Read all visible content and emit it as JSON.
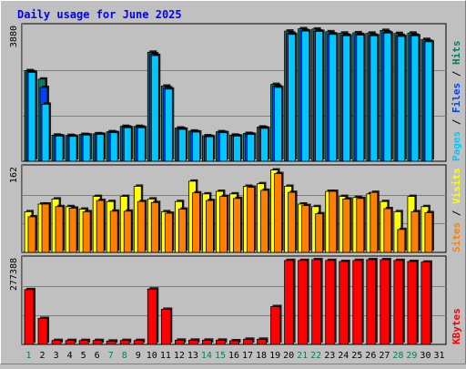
{
  "chart_data": {
    "type": "bar",
    "title": "Daily usage for June 2025",
    "categories": [
      "1",
      "2",
      "3",
      "4",
      "5",
      "6",
      "7",
      "8",
      "9",
      "10",
      "11",
      "12",
      "13",
      "14",
      "15",
      "16",
      "17",
      "18",
      "19",
      "20",
      "21",
      "22",
      "23",
      "24",
      "25",
      "26",
      "27",
      "28",
      "29",
      "30",
      "31"
    ],
    "weekend_days": [
      1,
      7,
      8,
      14,
      15,
      21,
      22,
      28,
      29
    ],
    "panels": [
      {
        "name": "hits-files-pages",
        "ylabel_max": "3880",
        "ymax": 4100,
        "legend": [
          {
            "text": "Pages",
            "color": "#00c8ff"
          },
          {
            "text": " / ",
            "color": "#000000"
          },
          {
            "text": "Files",
            "color": "#0040ff"
          },
          {
            "text": " / ",
            "color": "#000000"
          },
          {
            "text": "Hits",
            "color": "#00805c"
          }
        ],
        "series": [
          {
            "name": "Hits",
            "color": "#00805c",
            "values": [
              2700,
              2450,
              780,
              770,
              800,
              820,
              880,
              1040,
              1040,
              3250,
              2240,
              990,
              900,
              760,
              880,
              780,
              830,
              1020,
              2290,
              3880,
              3950,
              3940,
              3860,
              3820,
              3830,
              3820,
              3900,
              3810,
              3820,
              3630,
              0
            ]
          },
          {
            "name": "Files",
            "color": "#0040ff",
            "values": [
              2670,
              2200,
              760,
              750,
              790,
              810,
              860,
              1020,
              1020,
              3200,
              2190,
              970,
              880,
              740,
              860,
              760,
              810,
              1000,
              2240,
              3820,
              3900,
              3880,
              3800,
              3760,
              3780,
              3760,
              3850,
              3750,
              3760,
              3580,
              0
            ]
          },
          {
            "name": "Pages",
            "color": "#00c8ff",
            "values": [
              2650,
              1700,
              750,
              740,
              780,
              800,
              850,
              1000,
              1000,
              3150,
              2150,
              950,
              870,
              730,
              850,
              750,
              800,
              980,
              2200,
              3780,
              3880,
              3870,
              3780,
              3740,
              3760,
              3740,
              3820,
              3720,
              3740,
              3560,
              0
            ]
          }
        ]
      },
      {
        "name": "visits-sites",
        "ylabel_max": "162",
        "ymax": 172,
        "legend": [
          {
            "text": "Sites",
            "color": "#ff8000"
          },
          {
            "text": " / ",
            "color": "#000000"
          },
          {
            "text": "Visits",
            "color": "#ffff00"
          }
        ],
        "series": [
          {
            "name": "Visits",
            "color": "#ffff00",
            "values": [
              80,
              95,
              105,
              90,
              85,
              110,
              100,
              110,
              130,
              105,
              80,
              100,
              140,
              115,
              120,
              115,
              130,
              135,
              162,
              130,
              95,
              90,
              120,
              110,
              108,
              115,
              100,
              80,
              110,
              90,
              0
            ]
          },
          {
            "name": "Sites",
            "color": "#ff8000",
            "values": [
              70,
              95,
              90,
              87,
              80,
              102,
              81,
              81,
              100,
              98,
              77,
              85,
              117,
              102,
              110,
              106,
              128,
              122,
              155,
              118,
              92,
              76,
              120,
              105,
              106,
              118,
              86,
              45,
              80,
              78,
              0
            ]
          }
        ]
      },
      {
        "name": "kbytes",
        "ylabel_max": "277388",
        "ymax": 292000,
        "legend": [
          {
            "text": "KBytes",
            "color": "#ff0000"
          }
        ],
        "series": [
          {
            "name": "KBytes",
            "color": "#ff0000",
            "values": [
              181000,
              86000,
              13000,
              13000,
              13000,
              13000,
              11000,
              13000,
              13000,
              183000,
              116000,
              14000,
              14000,
              14000,
              14000,
              12000,
              17000,
              17000,
              125000,
              277388,
              277388,
              280000,
              277388,
              274000,
              277388,
              280000,
              280000,
              277388,
              274000,
              272000,
              0
            ]
          }
        ]
      }
    ]
  }
}
